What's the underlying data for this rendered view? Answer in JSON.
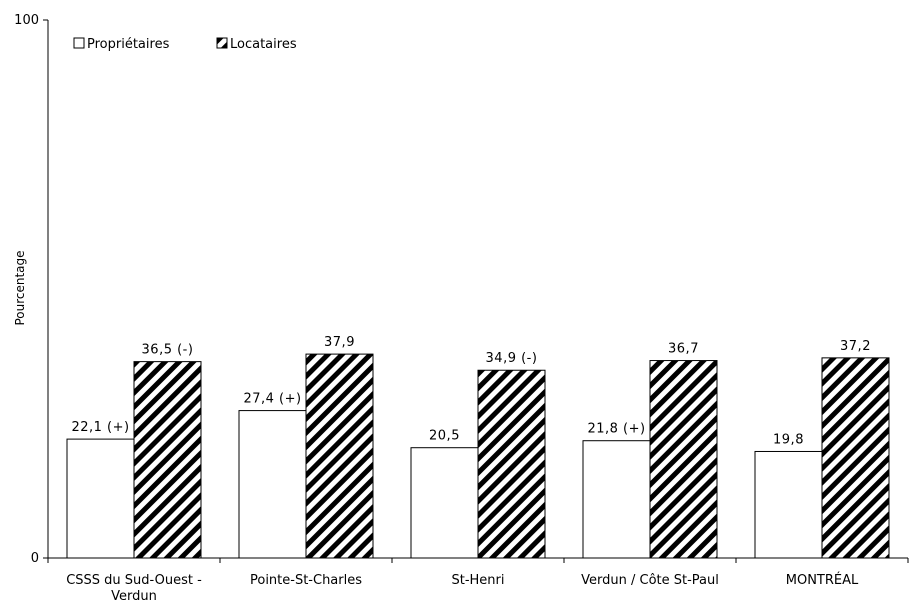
{
  "chart_data": {
    "type": "bar",
    "title": "",
    "xlabel": "",
    "ylabel": "Pourcentage",
    "ylim": [
      0,
      100
    ],
    "yticks": [
      "0",
      "100"
    ],
    "grid": false,
    "legend_position": "top-left",
    "categories": [
      [
        "CSSS du Sud-Ouest -",
        "Verdun"
      ],
      [
        "Pointe-St-Charles"
      ],
      [
        "St-Henri"
      ],
      [
        "Verdun / Côte St-Paul"
      ],
      [
        "MONTRÉAL"
      ]
    ],
    "series": [
      {
        "name": "Propriétaires",
        "fill": "#ffffff",
        "pattern": "none",
        "values": [
          22.1,
          27.4,
          20.5,
          21.8,
          19.8
        ],
        "labels": [
          "22,1 (+)",
          "27,4 (+)",
          "20,5",
          "21,8 (+)",
          "19,8"
        ]
      },
      {
        "name": "Locataires",
        "fill": "#000000",
        "pattern": "diagonal-hatch",
        "values": [
          36.5,
          37.9,
          34.9,
          36.7,
          37.2
        ],
        "labels": [
          "36,5 (-)",
          "37,9",
          "34,9 (-)",
          "36,7",
          "37,2"
        ]
      }
    ]
  }
}
